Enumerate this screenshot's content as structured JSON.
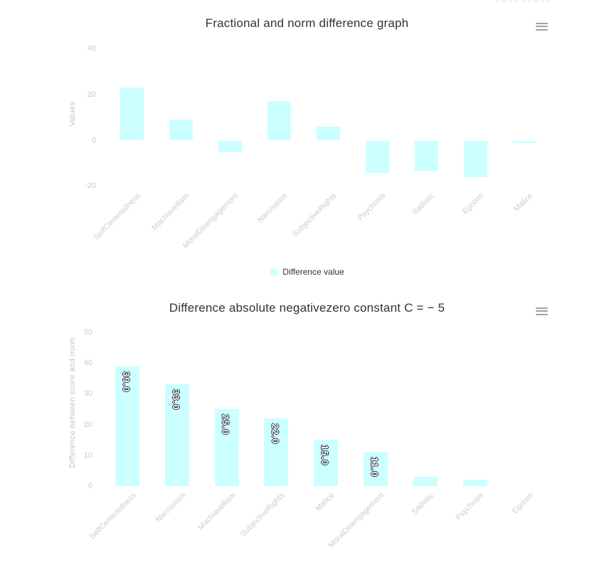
{
  "page": {
    "background": "#ffffff"
  },
  "colors": {
    "series": "#ccffff",
    "title_text": "#333333",
    "axis_text": "#c9c9c9",
    "data_label_text": "#ffffff",
    "data_label_outline": "#252538",
    "menu_icon": "#a2a2a2"
  },
  "context_menu": {
    "icon": "hamburger-menu-icon"
  },
  "chart_data": [
    {
      "type": "bar",
      "title": "Fractional and norm difference graph",
      "categories": [
        "SelfCenteredness",
        "Machiavellism",
        "MoralDisengagement",
        "Narcissism",
        "SubjectiveRights",
        "Psychosis",
        "Sadistic",
        "Egoism",
        "Malice"
      ],
      "series": [
        {
          "name": "Difference value",
          "color": "#ccffff",
          "values": [
            23,
            9,
            -5,
            17,
            6,
            -14,
            -13,
            -16,
            -1
          ]
        }
      ],
      "xlabel": "",
      "ylabel": "Values",
      "yticks": [
        40,
        20,
        0,
        -20
      ],
      "ylim": [
        -22,
        42
      ],
      "grid": false,
      "data_labels": null,
      "legend": {
        "visible": true,
        "position": "bottom",
        "label": "Difference value"
      }
    },
    {
      "type": "bar",
      "title": "Difference absolute negativezero constant C = − 5",
      "categories": [
        "SelfCenteredness",
        "Narcissism",
        "Machiavellism",
        "SubjectiveRights",
        "Malice",
        "MoralDisengagement",
        "Sadistic",
        "Psychosis",
        "Egoism"
      ],
      "series": [
        {
          "name": "Difference between score and norm",
          "color": "#ccffff",
          "values": [
            39,
            33,
            25,
            22,
            15,
            11,
            3,
            2,
            0
          ]
        }
      ],
      "xlabel": "",
      "ylabel": "Difference between score and norm",
      "yticks": [
        50,
        40,
        30,
        20,
        10,
        0
      ],
      "ylim": [
        0,
        50
      ],
      "grid": false,
      "data_labels": [
        "39.0",
        "33.0",
        "25.0",
        "22.0",
        "15.0",
        "11.0",
        "",
        "",
        ""
      ],
      "legend": {
        "visible": false,
        "position": null,
        "label": ""
      }
    }
  ]
}
